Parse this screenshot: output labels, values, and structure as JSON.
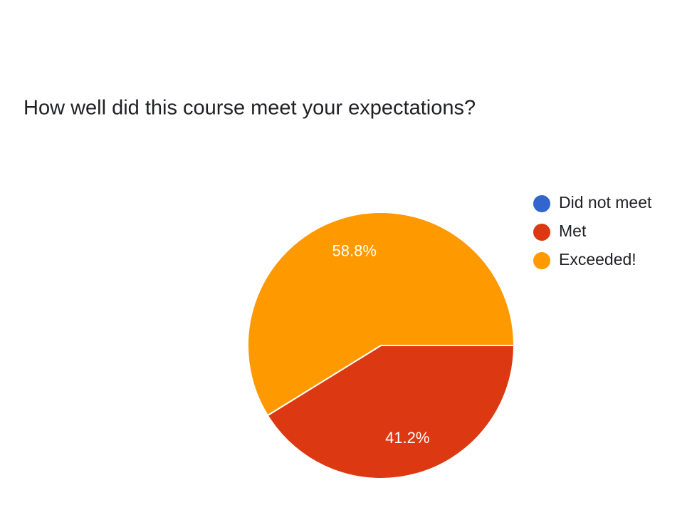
{
  "chart_data": {
    "type": "pie",
    "title": "How well did this course meet your expectations?",
    "categories": [
      "Did not meet",
      "Met",
      "Exceeded!"
    ],
    "values": [
      0,
      41.2,
      58.8
    ],
    "value_labels": [
      null,
      "41.2%",
      "58.8%"
    ],
    "colors": [
      "#3366cc",
      "#dc3912",
      "#ff9900"
    ],
    "legend": "right"
  }
}
